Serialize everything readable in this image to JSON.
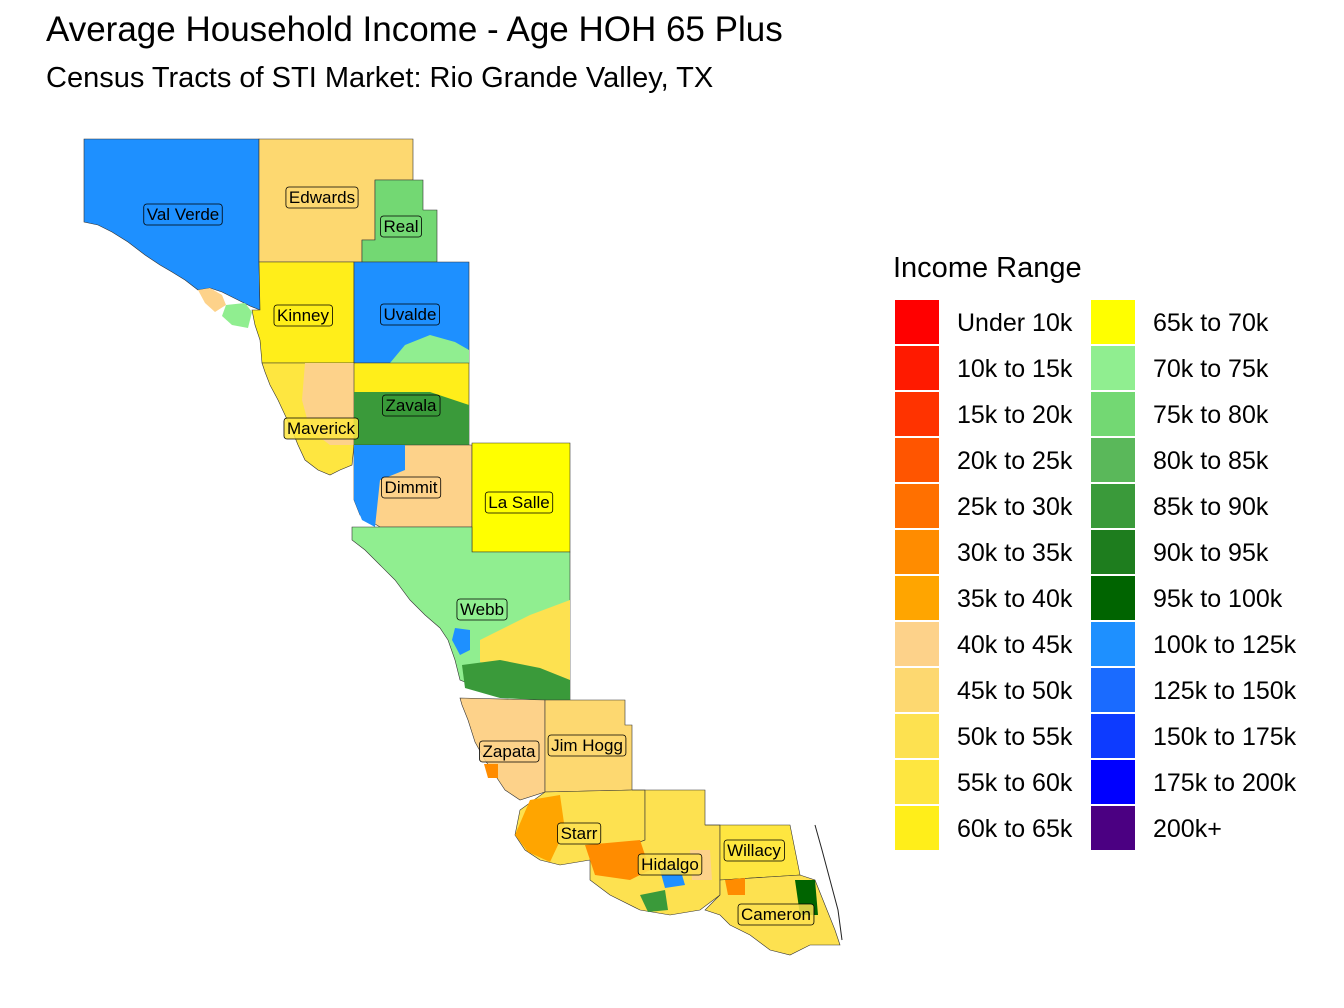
{
  "title": "Average Household Income - Age HOH 65 Plus",
  "subtitle": "Census Tracts of STI Market: Rio Grande Valley, TX",
  "legend": {
    "title": "Income Range",
    "items": [
      {
        "label": "Under 10k",
        "color": "#ff0000"
      },
      {
        "label": "10k to 15k",
        "color": "#ff1a00"
      },
      {
        "label": "15k to 20k",
        "color": "#ff3300"
      },
      {
        "label": "20k to 25k",
        "color": "#ff5500"
      },
      {
        "label": "25k to 30k",
        "color": "#ff7000"
      },
      {
        "label": "30k to 35k",
        "color": "#ff8c00"
      },
      {
        "label": "35k to 40k",
        "color": "#ffa500"
      },
      {
        "label": "40k to 45k",
        "color": "#fdd28a"
      },
      {
        "label": "45k to 50k",
        "color": "#fdd870"
      },
      {
        "label": "50k to 55k",
        "color": "#fde150"
      },
      {
        "label": "55k to 60k",
        "color": "#fee640"
      },
      {
        "label": "60k to 65k",
        "color": "#ffee1a"
      },
      {
        "label": "65k to 70k",
        "color": "#ffff00"
      },
      {
        "label": "70k to 75k",
        "color": "#90ee90"
      },
      {
        "label": "75k to 80k",
        "color": "#73d873"
      },
      {
        "label": "80k to 85k",
        "color": "#5ab85a"
      },
      {
        "label": "85k to 90k",
        "color": "#3a9a3a"
      },
      {
        "label": "90k to 95k",
        "color": "#1e7d1e"
      },
      {
        "label": "95k to 100k",
        "color": "#006400"
      },
      {
        "label": "100k to 125k",
        "color": "#1e90ff"
      },
      {
        "label": "125k to 150k",
        "color": "#1a6bff"
      },
      {
        "label": "150k to 175k",
        "color": "#0d3bff"
      },
      {
        "label": "175k to 200k",
        "color": "#0000ff"
      },
      {
        "label": "200k+",
        "color": "#4b0082"
      }
    ]
  },
  "counties": [
    {
      "name": "Val Verde",
      "color": "#1e90ff"
    },
    {
      "name": "Edwards",
      "color": "#fdd870"
    },
    {
      "name": "Real",
      "color": "#73d873"
    },
    {
      "name": "Kinney",
      "color": "#ffee1a"
    },
    {
      "name": "Uvalde",
      "color": "#1e90ff"
    },
    {
      "name": "Zavala",
      "color": "#3a9a3a"
    },
    {
      "name": "Maverick",
      "color": "#fee640"
    },
    {
      "name": "Dimmit",
      "color": "#fdd28a"
    },
    {
      "name": "La Salle",
      "color": "#ffff00"
    },
    {
      "name": "Webb",
      "color": "#90ee90"
    },
    {
      "name": "Zapata",
      "color": "#fdd28a"
    },
    {
      "name": "Jim Hogg",
      "color": "#fdd870"
    },
    {
      "name": "Starr",
      "color": "#fde150"
    },
    {
      "name": "Hidalgo",
      "color": "#fde150"
    },
    {
      "name": "Willacy",
      "color": "#fee640"
    },
    {
      "name": "Cameron",
      "color": "#fde150"
    }
  ]
}
